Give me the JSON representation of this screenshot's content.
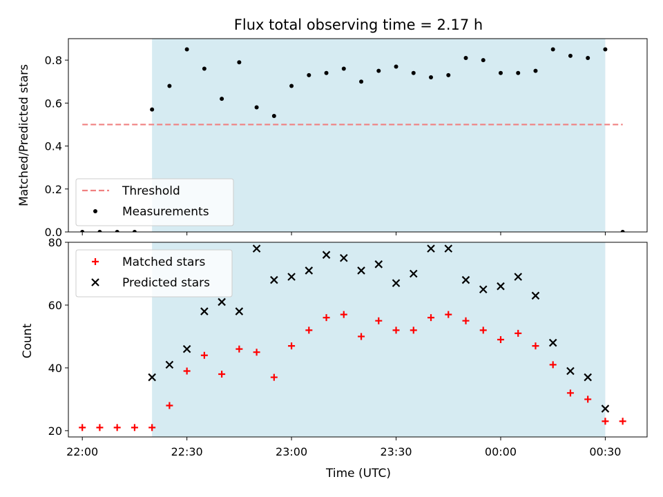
{
  "chart_data": [
    {
      "type": "scatter",
      "title": "Flux total observing time = 2.17 h",
      "xlabel": "",
      "ylabel": "Matched/Predicted stars",
      "xlim": [
        "21:56",
        "00:42"
      ],
      "ylim": [
        0,
        0.9
      ],
      "yticks": [
        "0.0",
        "0.2",
        "0.4",
        "0.6",
        "0.8"
      ],
      "shaded_interval": [
        "22:20",
        "00:30"
      ],
      "shade_color": "#add8e6",
      "legend_position": "lower-left",
      "series": [
        {
          "name": "Threshold",
          "kind": "dashed-line",
          "color": "#f08080",
          "x": [
            "22:00",
            "00:35"
          ],
          "y": [
            0.5,
            0.5
          ]
        },
        {
          "name": "Measurements",
          "kind": "dots",
          "color": "#000000",
          "x": [
            "22:00",
            "22:05",
            "22:10",
            "22:15",
            "22:20",
            "22:25",
            "22:30",
            "22:35",
            "22:40",
            "22:45",
            "22:50",
            "22:55",
            "23:00",
            "23:05",
            "23:10",
            "23:15",
            "23:20",
            "23:25",
            "23:30",
            "23:35",
            "23:40",
            "23:45",
            "23:50",
            "23:55",
            "00:00",
            "00:05",
            "00:10",
            "00:15",
            "00:20",
            "00:25",
            "00:30",
            "00:35"
          ],
          "y": [
            0,
            0,
            0,
            0,
            0.57,
            0.68,
            0.85,
            0.76,
            0.62,
            0.79,
            0.58,
            0.54,
            0.68,
            0.73,
            0.74,
            0.76,
            0.7,
            0.75,
            0.77,
            0.74,
            0.72,
            0.73,
            0.81,
            0.8,
            0.74,
            0.74,
            0.75,
            0.85,
            0.82,
            0.81,
            0.85,
            0
          ]
        }
      ]
    },
    {
      "type": "scatter",
      "title": "",
      "xlabel": "Time (UTC)",
      "ylabel": "Count",
      "xlim": [
        "21:56",
        "00:42"
      ],
      "ylim": [
        18,
        80
      ],
      "yticks": [
        "20",
        "40",
        "60",
        "80"
      ],
      "xticks": [
        "22:00",
        "22:30",
        "23:00",
        "23:30",
        "00:00",
        "00:30"
      ],
      "shaded_interval": [
        "22:20",
        "00:30"
      ],
      "shade_color": "#add8e6",
      "legend_position": "upper-left",
      "series": [
        {
          "name": "Matched stars",
          "kind": "plus",
          "color": "#ff0000",
          "x": [
            "22:00",
            "22:05",
            "22:10",
            "22:15",
            "22:20",
            "22:25",
            "22:30",
            "22:35",
            "22:40",
            "22:45",
            "22:50",
            "22:55",
            "23:00",
            "23:05",
            "23:10",
            "23:15",
            "23:20",
            "23:25",
            "23:30",
            "23:35",
            "23:40",
            "23:45",
            "23:50",
            "23:55",
            "00:00",
            "00:05",
            "00:10",
            "00:15",
            "00:20",
            "00:25",
            "00:30",
            "00:35"
          ],
          "y": [
            21,
            21,
            21,
            21,
            21,
            28,
            39,
            44,
            38,
            46,
            45,
            37,
            47,
            52,
            56,
            57,
            50,
            55,
            52,
            52,
            56,
            57,
            55,
            52,
            49,
            51,
            47,
            41,
            32,
            30,
            23,
            23
          ]
        },
        {
          "name": "Predicted stars",
          "kind": "cross",
          "color": "#000000",
          "x": [
            "22:20",
            "22:25",
            "22:30",
            "22:35",
            "22:40",
            "22:45",
            "22:50",
            "22:55",
            "23:00",
            "23:05",
            "23:10",
            "23:15",
            "23:20",
            "23:25",
            "23:30",
            "23:35",
            "23:40",
            "23:45",
            "23:50",
            "23:55",
            "00:00",
            "00:05",
            "00:10",
            "00:15",
            "00:20",
            "00:25",
            "00:30"
          ],
          "y": [
            37,
            41,
            46,
            58,
            61,
            58,
            78,
            68,
            69,
            71,
            76,
            75,
            71,
            73,
            67,
            70,
            78,
            78,
            68,
            65,
            66,
            69,
            63,
            48,
            39,
            37,
            27
          ]
        }
      ]
    }
  ]
}
